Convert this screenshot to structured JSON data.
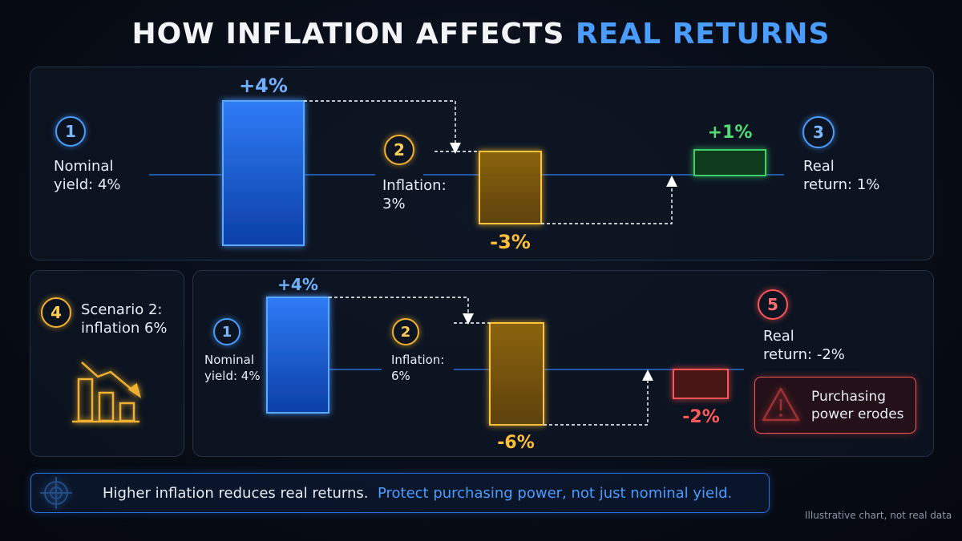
{
  "title": {
    "main": "HOW INFLATION AFFECTS ",
    "accent": "REAL RETURNS"
  },
  "scenario1": {
    "step1": {
      "number": "1",
      "label": "Nominal\nyield: 4%",
      "value": 4,
      "value_label": "+4%"
    },
    "step2": {
      "number": "2",
      "label": "Inflation:\n3%",
      "value": -3,
      "value_label": "-3%"
    },
    "step3": {
      "number": "3",
      "label": "Real\nreturn: 1%",
      "value": 1,
      "value_label": "+1%"
    }
  },
  "scenario2": {
    "intro": {
      "number": "4",
      "label": "Scenario 2:\ninflation 6%"
    },
    "step1": {
      "number": "1",
      "label": "Nominal\nyield: 4%",
      "value": 4,
      "value_label": "+4%"
    },
    "step2": {
      "number": "2",
      "label": "Inflation:\n6%",
      "value": -6,
      "value_label": "-6%"
    },
    "step5": {
      "number": "5",
      "label": "Real\nreturn: -2%",
      "value": -2,
      "value_label": "-2%"
    },
    "warning": "Purchasing\npower erodes"
  },
  "footer": {
    "text": "Higher inflation reduces real returns.",
    "highlight": "Protect purchasing power, not just nominal yield."
  },
  "note": "Illustrative chart, not real data",
  "colors": {
    "nominal": "#2f7cf6",
    "inflation": "#f0b030",
    "real_positive": "#3fd06a",
    "real_negative": "#ff5555",
    "accent": "#4a9cff"
  },
  "icons": [
    "target-icon",
    "warning-triangle-icon",
    "declining-bar-chart-icon"
  ]
}
